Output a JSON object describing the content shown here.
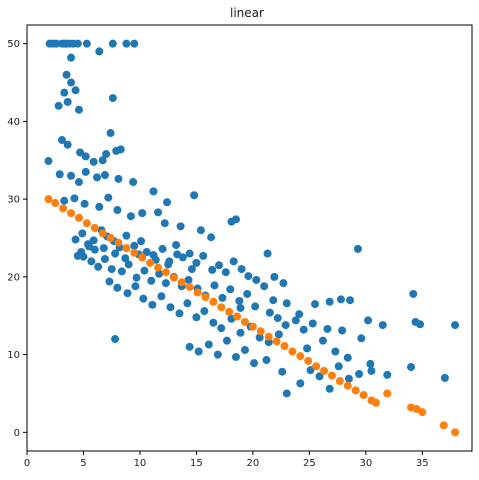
{
  "chart_data": {
    "type": "scatter",
    "title": "linear",
    "xlabel": "",
    "ylabel": "",
    "xlim": [
      0,
      39.4
    ],
    "ylim": [
      -2.4,
      52.4
    ],
    "xticks": [
      0,
      5,
      10,
      15,
      20,
      25,
      30,
      35
    ],
    "yticks": [
      0,
      10,
      20,
      30,
      40,
      50
    ],
    "grid": false,
    "legend": "none",
    "series": [
      {
        "color": "#1f77b4",
        "marker_radius": 4,
        "points": [
          [
            2.0,
            50.0
          ],
          [
            2.3,
            50.0
          ],
          [
            2.6,
            50.0
          ],
          [
            3.1,
            50.0
          ],
          [
            3.3,
            50.0
          ],
          [
            3.5,
            50.0
          ],
          [
            3.8,
            50.0
          ],
          [
            4.1,
            50.0
          ],
          [
            4.5,
            50.0
          ],
          [
            5.3,
            50.0
          ],
          [
            6.4,
            49.0
          ],
          [
            7.6,
            50.0
          ],
          [
            8.8,
            50.0
          ],
          [
            9.5,
            50.0
          ],
          [
            3.9,
            48.2
          ],
          [
            3.5,
            46.0
          ],
          [
            3.9,
            45.0
          ],
          [
            4.3,
            44.0
          ],
          [
            3.3,
            43.7
          ],
          [
            3.6,
            42.5
          ],
          [
            2.8,
            42.0
          ],
          [
            7.6,
            43.0
          ],
          [
            4.6,
            41.5
          ],
          [
            7.4,
            38.5
          ],
          [
            7.9,
            36.2
          ],
          [
            3.1,
            37.6
          ],
          [
            3.6,
            37.0
          ],
          [
            4.7,
            36.0
          ],
          [
            5.2,
            35.5
          ],
          [
            5.9,
            34.8
          ],
          [
            6.7,
            35.0
          ],
          [
            7.0,
            35.8
          ],
          [
            8.3,
            36.4
          ],
          [
            9.4,
            32.2
          ],
          [
            1.9,
            34.9
          ],
          [
            2.9,
            33.2
          ],
          [
            3.9,
            33.0
          ],
          [
            4.6,
            32.2
          ],
          [
            5.2,
            33.5
          ],
          [
            6.2,
            32.8
          ],
          [
            6.9,
            33.1
          ],
          [
            8.1,
            32.6
          ],
          [
            11.2,
            31.0
          ],
          [
            12.4,
            29.6
          ],
          [
            14.8,
            30.5
          ],
          [
            3.3,
            29.8
          ],
          [
            4.2,
            30.1
          ],
          [
            5.1,
            29.4
          ],
          [
            6.4,
            29.0
          ],
          [
            7.2,
            30.2
          ],
          [
            8.0,
            28.6
          ],
          [
            9.2,
            27.8
          ],
          [
            10.2,
            28.2
          ],
          [
            11.6,
            28.3
          ],
          [
            12.2,
            26.9
          ],
          [
            13.6,
            26.5
          ],
          [
            15.4,
            26.0
          ],
          [
            16.3,
            25.1
          ],
          [
            18.1,
            27.1
          ],
          [
            18.5,
            27.4
          ],
          [
            4.3,
            24.8
          ],
          [
            4.9,
            25.6
          ],
          [
            5.4,
            24.2
          ],
          [
            6.0,
            23.5
          ],
          [
            6.6,
            26.0
          ],
          [
            7.1,
            25.2
          ],
          [
            7.7,
            24.6
          ],
          [
            8.2,
            23.8
          ],
          [
            8.8,
            25.3
          ],
          [
            9.5,
            24.0
          ],
          [
            10.1,
            24.6
          ],
          [
            10.6,
            23.2
          ],
          [
            11.2,
            22.8
          ],
          [
            12.0,
            23.6
          ],
          [
            12.6,
            22.0
          ],
          [
            13.2,
            24.1
          ],
          [
            13.8,
            22.5
          ],
          [
            14.4,
            23.0
          ],
          [
            15.0,
            21.8
          ],
          [
            15.6,
            22.7
          ],
          [
            16.4,
            20.9
          ],
          [
            17.0,
            21.5
          ],
          [
            17.6,
            20.6
          ],
          [
            18.3,
            22.0
          ],
          [
            19.0,
            21.0
          ],
          [
            19.6,
            20.1
          ],
          [
            20.3,
            19.6
          ],
          [
            21.0,
            18.8
          ],
          [
            5.0,
            22.6
          ],
          [
            5.7,
            22.0
          ],
          [
            6.3,
            21.3
          ],
          [
            6.9,
            22.3
          ],
          [
            7.5,
            21.0
          ],
          [
            8.4,
            20.7
          ],
          [
            9.0,
            21.6
          ],
          [
            9.7,
            19.9
          ],
          [
            10.4,
            20.8
          ],
          [
            11.0,
            19.5
          ],
          [
            11.7,
            20.4
          ],
          [
            12.3,
            19.2
          ],
          [
            13.0,
            20.0
          ],
          [
            13.7,
            18.8
          ],
          [
            14.3,
            19.6
          ],
          [
            15.1,
            18.5
          ],
          [
            15.8,
            17.6
          ],
          [
            16.6,
            18.9
          ],
          [
            17.3,
            17.3
          ],
          [
            18.0,
            18.4
          ],
          [
            18.8,
            16.9
          ],
          [
            19.5,
            17.8
          ],
          [
            20.2,
            16.2
          ],
          [
            21.5,
            15.4
          ],
          [
            22.2,
            14.7
          ],
          [
            22.9,
            13.8
          ],
          [
            23.8,
            14.4
          ],
          [
            24.5,
            13.2
          ],
          [
            7.3,
            19.4
          ],
          [
            8.0,
            18.6
          ],
          [
            8.9,
            17.9
          ],
          [
            9.6,
            18.8
          ],
          [
            10.3,
            17.2
          ],
          [
            11.1,
            16.4
          ],
          [
            11.9,
            17.5
          ],
          [
            12.7,
            16.1
          ],
          [
            13.5,
            15.3
          ],
          [
            14.2,
            16.6
          ],
          [
            15.0,
            14.8
          ],
          [
            15.7,
            15.6
          ],
          [
            16.5,
            14.1
          ],
          [
            17.2,
            13.4
          ],
          [
            18.1,
            14.6
          ],
          [
            18.9,
            12.8
          ],
          [
            19.8,
            13.6
          ],
          [
            20.6,
            12.2
          ],
          [
            21.4,
            11.6
          ],
          [
            22.3,
            12.6
          ],
          [
            7.8,
            12.0
          ],
          [
            14.4,
            11.0
          ],
          [
            15.2,
            10.4
          ],
          [
            16.1,
            11.3
          ],
          [
            16.9,
            10.0
          ],
          [
            17.7,
            11.8
          ],
          [
            18.5,
            9.7
          ],
          [
            19.3,
            10.6
          ],
          [
            20.1,
            8.9
          ],
          [
            21.2,
            9.3
          ],
          [
            22.6,
            7.8
          ],
          [
            23.0,
            5.0
          ],
          [
            24.2,
            6.3
          ],
          [
            25.1,
            8.0
          ],
          [
            25.9,
            7.2
          ],
          [
            26.8,
            5.6
          ],
          [
            27.6,
            8.5
          ],
          [
            28.5,
            6.9
          ],
          [
            29.4,
            7.5
          ],
          [
            30.5,
            7.9
          ],
          [
            31.9,
            7.4
          ],
          [
            34.0,
            8.4
          ],
          [
            37.0,
            7.0
          ],
          [
            21.8,
            17.0
          ],
          [
            23.0,
            16.6
          ],
          [
            24.1,
            15.2
          ],
          [
            25.3,
            14.0
          ],
          [
            26.2,
            11.8
          ],
          [
            27.3,
            10.4
          ],
          [
            28.4,
            9.6
          ],
          [
            29.3,
            23.6
          ],
          [
            30.2,
            14.4
          ],
          [
            31.5,
            13.8
          ],
          [
            34.4,
            14.2
          ],
          [
            34.8,
            13.9
          ],
          [
            37.9,
            13.8
          ],
          [
            34.2,
            17.8
          ],
          [
            24.8,
            10.8
          ],
          [
            26.6,
            13.3
          ],
          [
            27.9,
            13.1
          ],
          [
            29.6,
            12.1
          ],
          [
            30.4,
            8.8
          ],
          [
            21.3,
            23.0
          ],
          [
            21.9,
            20.0
          ],
          [
            26.8,
            16.8
          ],
          [
            27.8,
            17.1
          ],
          [
            28.6,
            17.0
          ],
          [
            25.5,
            16.5
          ],
          [
            22.7,
            19.2
          ],
          [
            18.9,
            16.0
          ],
          [
            14.6,
            21.0
          ],
          [
            13.3,
            22.9
          ],
          [
            12.5,
            21.6
          ],
          [
            11.4,
            22.2
          ],
          [
            9.9,
            22.9
          ],
          [
            8.7,
            22.4
          ],
          [
            7.8,
            23.0
          ],
          [
            6.8,
            23.7
          ],
          [
            5.9,
            24.7
          ],
          [
            5.5,
            23.9
          ],
          [
            4.8,
            23.2
          ],
          [
            4.5,
            22.7
          ]
        ]
      },
      {
        "color": "#ff7f0e",
        "marker_radius": 4,
        "points": [
          [
            1.9,
            30.0
          ],
          [
            2.5,
            29.5
          ],
          [
            3.2,
            28.8
          ],
          [
            3.9,
            28.2
          ],
          [
            4.6,
            27.6
          ],
          [
            5.3,
            26.9
          ],
          [
            6.0,
            26.3
          ],
          [
            6.7,
            25.6
          ],
          [
            7.4,
            25.0
          ],
          [
            8.1,
            24.4
          ],
          [
            8.8,
            23.7
          ],
          [
            9.5,
            23.1
          ],
          [
            10.2,
            22.5
          ],
          [
            10.9,
            21.8
          ],
          [
            11.6,
            21.2
          ],
          [
            12.3,
            20.6
          ],
          [
            13.0,
            19.9
          ],
          [
            13.7,
            19.3
          ],
          [
            14.4,
            18.7
          ],
          [
            15.1,
            18.0
          ],
          [
            15.8,
            17.4
          ],
          [
            16.5,
            16.8
          ],
          [
            17.2,
            16.1
          ],
          [
            17.9,
            15.5
          ],
          [
            18.6,
            14.9
          ],
          [
            19.3,
            14.2
          ],
          [
            20.0,
            13.6
          ],
          [
            20.7,
            13.0
          ],
          [
            21.4,
            12.3
          ],
          [
            22.1,
            11.7
          ],
          [
            22.8,
            11.1
          ],
          [
            23.5,
            10.4
          ],
          [
            24.2,
            9.8
          ],
          [
            24.9,
            9.2
          ],
          [
            25.6,
            8.5
          ],
          [
            26.3,
            7.9
          ],
          [
            27.0,
            7.3
          ],
          [
            27.7,
            6.6
          ],
          [
            28.4,
            6.0
          ],
          [
            29.1,
            5.4
          ],
          [
            29.8,
            4.8
          ],
          [
            30.5,
            4.1
          ],
          [
            30.9,
            3.8
          ],
          [
            31.9,
            5.0
          ],
          [
            34.0,
            3.2
          ],
          [
            34.5,
            3.0
          ],
          [
            35.0,
            2.6
          ],
          [
            36.9,
            0.9
          ],
          [
            37.9,
            0.0
          ]
        ]
      }
    ]
  }
}
